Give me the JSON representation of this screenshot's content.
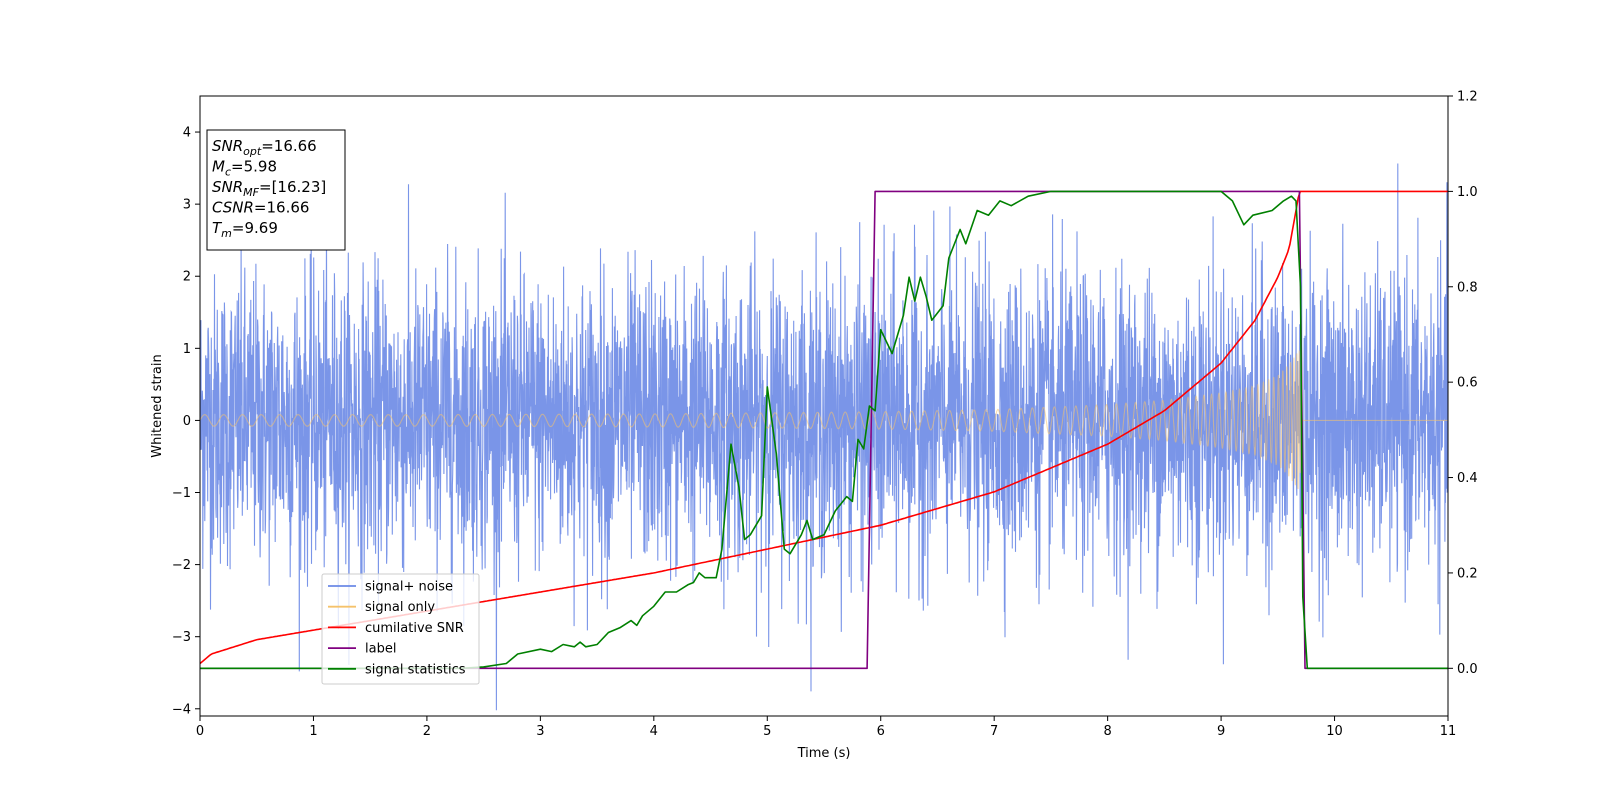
{
  "chart_data": {
    "type": "line",
    "title": "",
    "xlabel": "Time (s)",
    "ylabel": "Whitened strain",
    "xlim": [
      0,
      11
    ],
    "ylim": [
      -4.1,
      4.5
    ],
    "ylim_right": [
      -0.1,
      1.2
    ],
    "xticks": [
      0,
      1,
      2,
      3,
      4,
      5,
      6,
      7,
      8,
      9,
      10,
      11
    ],
    "yticks": [
      -4,
      -3,
      -2,
      -1,
      0,
      1,
      2,
      3,
      4
    ],
    "yticks_right": [
      "0.0",
      "0.2",
      "0.4",
      "0.6",
      "0.8",
      "1.0",
      "1.2"
    ],
    "grid": false,
    "legend": {
      "position": "lower-left",
      "entries": [
        {
          "name": "signal+ noise",
          "color": "#6b8ae6"
        },
        {
          "name": "signal only",
          "color": "#f5c26b"
        },
        {
          "name": "cumilative SNR",
          "color": "#ff0000"
        },
        {
          "name": "label",
          "color": "#800080"
        },
        {
          "name": "signal statistics",
          "color": "#008000"
        }
      ]
    },
    "annotation": {
      "lines": [
        {
          "pre": "SNR",
          "sub": "opt",
          "post": "=16.66"
        },
        {
          "pre": "M",
          "sub": "c",
          "post": "=5.98"
        },
        {
          "pre": "SNR",
          "sub": "MF",
          "post": "=[16.23]"
        },
        {
          "pre": "CSNR",
          "sub": "",
          "post": "=16.66"
        },
        {
          "pre": "T",
          "sub": "m",
          "post": "=9.69"
        }
      ]
    },
    "series": [
      {
        "name": "signal+ noise",
        "axis": "left",
        "noise_std": 1.0,
        "x_end": 11
      },
      {
        "name": "signal only",
        "axis": "left",
        "envelope": {
          "x": [
            0,
            2,
            4,
            6,
            7,
            8,
            8.5,
            9,
            9.3,
            9.5,
            9.6,
            9.69,
            9.72,
            11
          ],
          "amp": [
            0.08,
            0.08,
            0.09,
            0.12,
            0.15,
            0.22,
            0.28,
            0.38,
            0.48,
            0.62,
            0.78,
            0.98,
            0.0,
            0.0
          ]
        }
      },
      {
        "name": "cumilative SNR",
        "axis": "right",
        "points": [
          [
            0,
            0.01
          ],
          [
            0.1,
            0.03
          ],
          [
            0.5,
            0.06
          ],
          [
            1,
            0.08
          ],
          [
            2,
            0.12
          ],
          [
            3,
            0.16
          ],
          [
            4,
            0.2
          ],
          [
            5,
            0.25
          ],
          [
            6,
            0.3
          ],
          [
            7,
            0.37
          ],
          [
            8,
            0.47
          ],
          [
            8.5,
            0.54
          ],
          [
            9,
            0.64
          ],
          [
            9.3,
            0.73
          ],
          [
            9.5,
            0.82
          ],
          [
            9.6,
            0.88
          ],
          [
            9.69,
            1.0
          ],
          [
            11,
            1.0
          ]
        ]
      },
      {
        "name": "label",
        "axis": "right",
        "points": [
          [
            0,
            0.0
          ],
          [
            5.88,
            0.0
          ],
          [
            5.95,
            1.0
          ],
          [
            9.69,
            1.0
          ],
          [
            9.74,
            0.0
          ],
          [
            11,
            0.0
          ]
        ]
      },
      {
        "name": "signal statistics",
        "axis": "right",
        "points": [
          [
            0,
            0.0
          ],
          [
            2.3,
            0.0
          ],
          [
            2.5,
            0.003
          ],
          [
            2.7,
            0.01
          ],
          [
            2.8,
            0.03
          ],
          [
            3.0,
            0.04
          ],
          [
            3.1,
            0.035
          ],
          [
            3.2,
            0.05
          ],
          [
            3.3,
            0.045
          ],
          [
            3.35,
            0.055
          ],
          [
            3.4,
            0.045
          ],
          [
            3.5,
            0.05
          ],
          [
            3.6,
            0.075
          ],
          [
            3.7,
            0.085
          ],
          [
            3.8,
            0.1
          ],
          [
            3.85,
            0.09
          ],
          [
            3.9,
            0.11
          ],
          [
            4.0,
            0.13
          ],
          [
            4.1,
            0.16
          ],
          [
            4.2,
            0.16
          ],
          [
            4.3,
            0.175
          ],
          [
            4.35,
            0.18
          ],
          [
            4.4,
            0.2
          ],
          [
            4.45,
            0.19
          ],
          [
            4.55,
            0.19
          ],
          [
            4.6,
            0.25
          ],
          [
            4.68,
            0.47
          ],
          [
            4.75,
            0.38
          ],
          [
            4.8,
            0.27
          ],
          [
            4.85,
            0.28
          ],
          [
            4.95,
            0.32
          ],
          [
            5.0,
            0.59
          ],
          [
            5.08,
            0.45
          ],
          [
            5.15,
            0.25
          ],
          [
            5.2,
            0.24
          ],
          [
            5.3,
            0.28
          ],
          [
            5.35,
            0.31
          ],
          [
            5.4,
            0.27
          ],
          [
            5.5,
            0.28
          ],
          [
            5.6,
            0.33
          ],
          [
            5.7,
            0.36
          ],
          [
            5.75,
            0.35
          ],
          [
            5.8,
            0.48
          ],
          [
            5.85,
            0.46
          ],
          [
            5.9,
            0.55
          ],
          [
            5.95,
            0.54
          ],
          [
            6.0,
            0.71
          ],
          [
            6.1,
            0.66
          ],
          [
            6.2,
            0.74
          ],
          [
            6.25,
            0.82
          ],
          [
            6.3,
            0.77
          ],
          [
            6.35,
            0.82
          ],
          [
            6.4,
            0.78
          ],
          [
            6.45,
            0.73
          ],
          [
            6.55,
            0.76
          ],
          [
            6.6,
            0.86
          ],
          [
            6.7,
            0.92
          ],
          [
            6.75,
            0.89
          ],
          [
            6.85,
            0.96
          ],
          [
            6.95,
            0.95
          ],
          [
            7.05,
            0.98
          ],
          [
            7.15,
            0.97
          ],
          [
            7.3,
            0.99
          ],
          [
            7.5,
            1.0
          ],
          [
            8.0,
            1.0
          ],
          [
            8.5,
            1.0
          ],
          [
            9.0,
            1.0
          ],
          [
            9.1,
            0.98
          ],
          [
            9.2,
            0.93
          ],
          [
            9.28,
            0.95
          ],
          [
            9.45,
            0.96
          ],
          [
            9.55,
            0.98
          ],
          [
            9.62,
            0.99
          ],
          [
            9.66,
            0.98
          ],
          [
            9.7,
            0.8
          ],
          [
            9.72,
            0.15
          ],
          [
            9.76,
            0.0
          ],
          [
            11,
            0.0
          ]
        ]
      }
    ]
  }
}
